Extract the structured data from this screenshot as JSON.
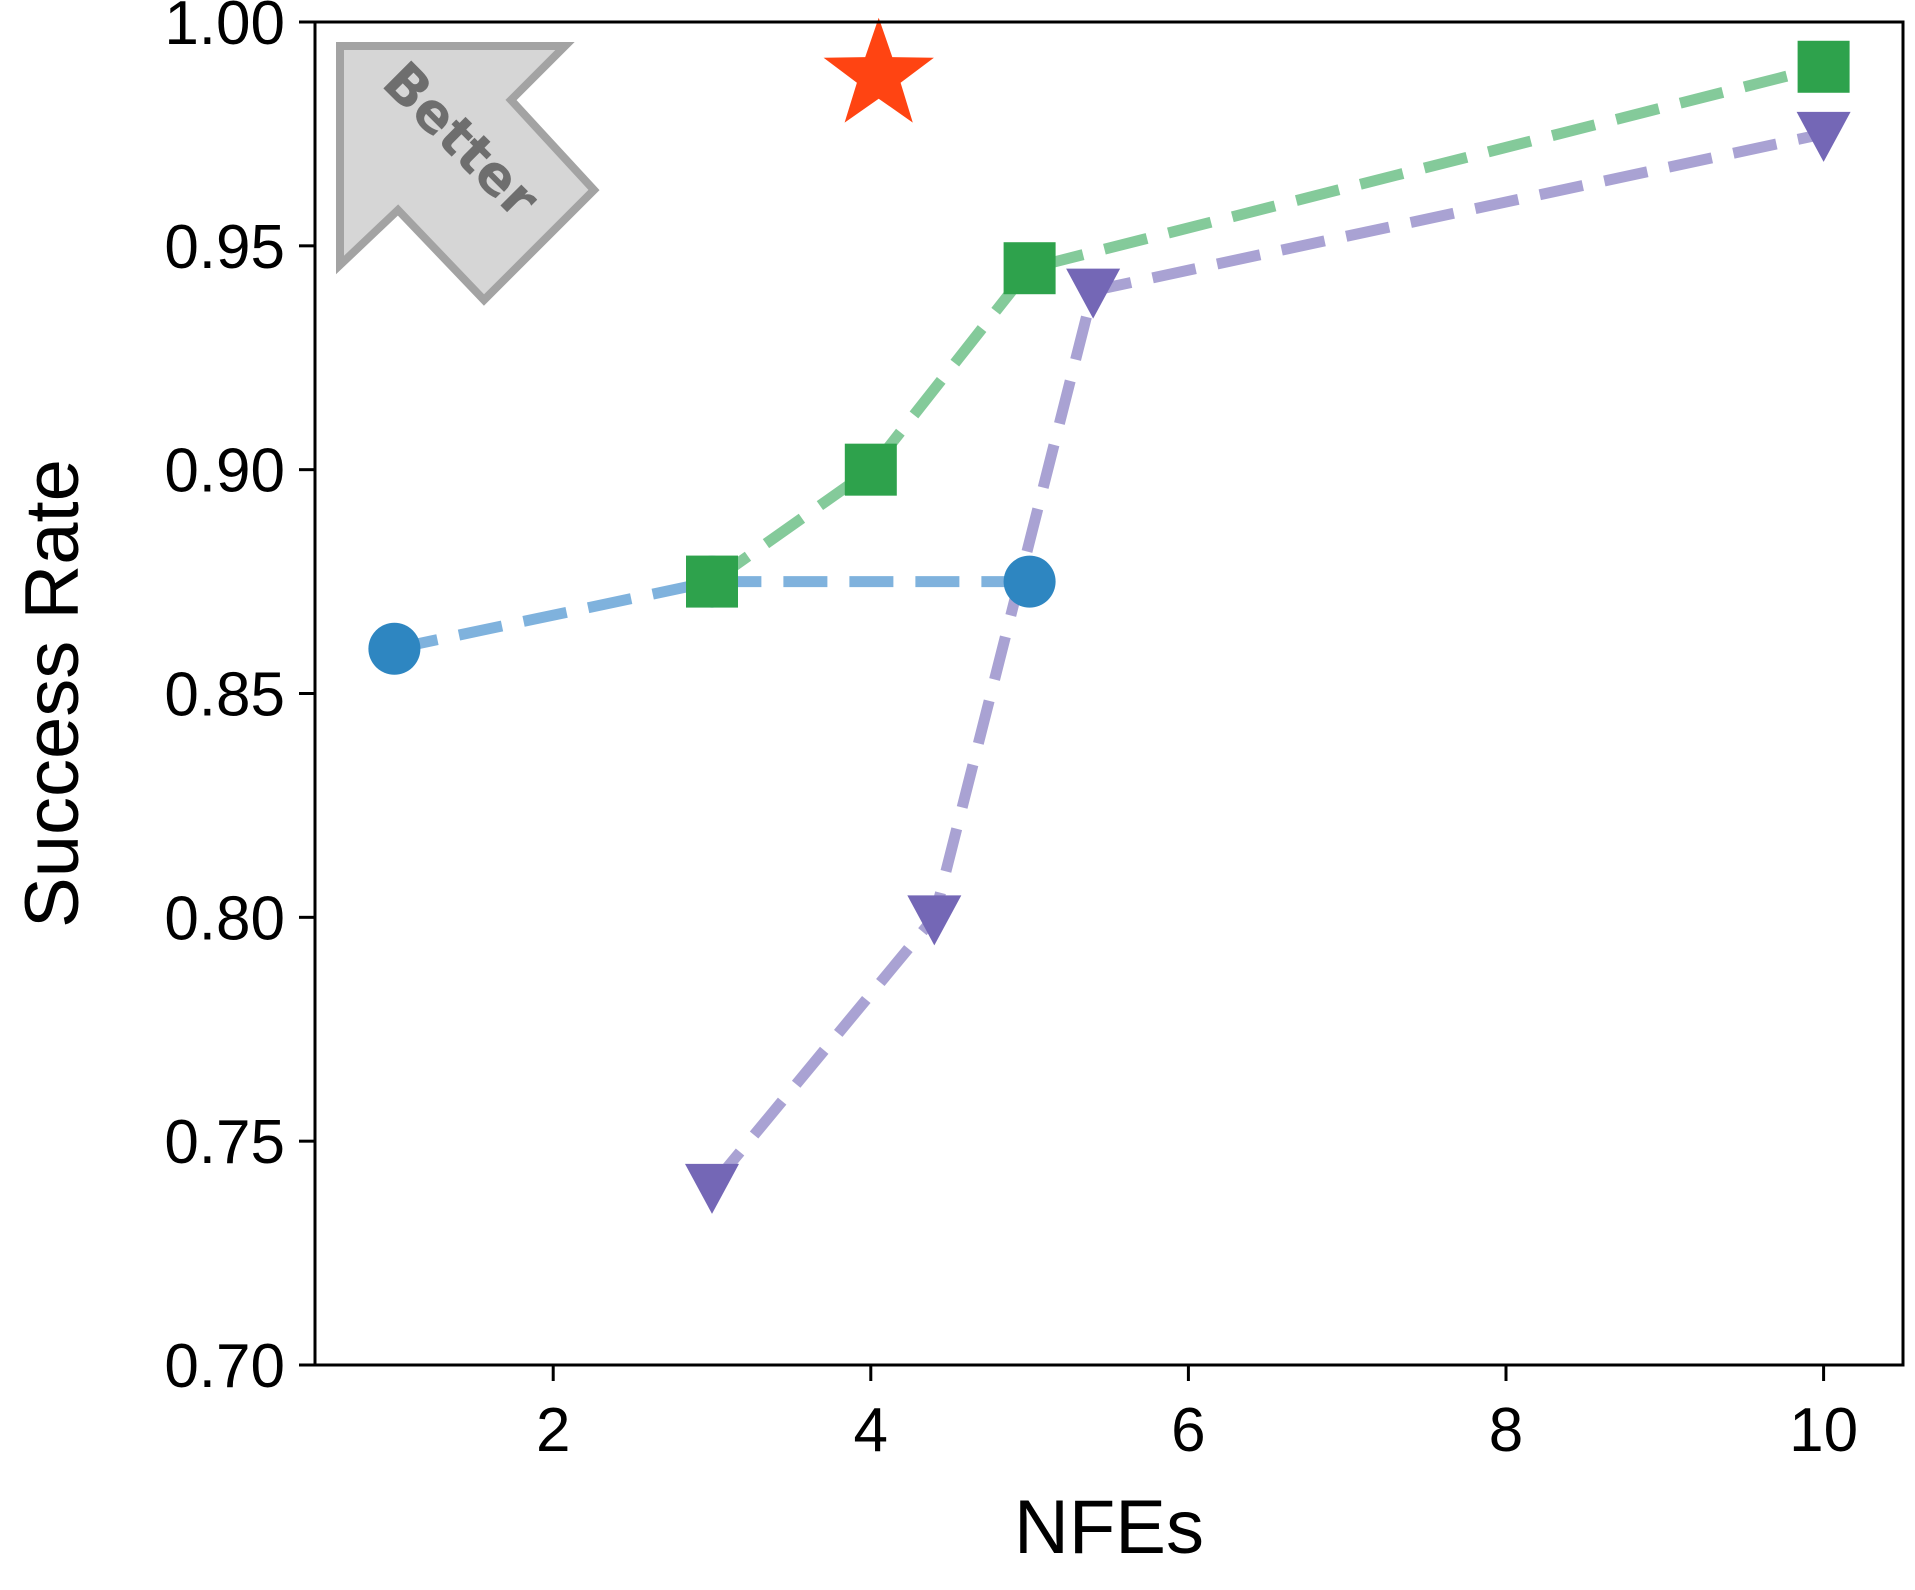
{
  "chart_data": {
    "type": "line",
    "xlabel": "NFEs",
    "ylabel": "Success Rate",
    "xlim": [
      0.5,
      10.5
    ],
    "ylim": [
      0.7,
      1.0
    ],
    "xticks": [
      2,
      4,
      6,
      8,
      10
    ],
    "yticks": [
      0.7,
      0.75,
      0.8,
      0.85,
      0.9,
      0.95,
      1.0
    ],
    "xtick_labels": [
      "2",
      "4",
      "6",
      "8",
      "10"
    ],
    "ytick_labels": [
      "0.70",
      "0.75",
      "0.80",
      "0.85",
      "0.90",
      "0.95",
      "1.00"
    ],
    "grid": false,
    "annotation": {
      "text": "Better",
      "direction": "top-left"
    },
    "series": [
      {
        "marker": "circle",
        "color": "#2E86C1",
        "line_color": "#7FB2DD",
        "line_style": "dashed",
        "points": [
          [
            1,
            0.86
          ],
          [
            3,
            0.875
          ],
          [
            5,
            0.875
          ]
        ]
      },
      {
        "marker": "square",
        "color": "#2EA24C",
        "line_color": "#84CA9A",
        "line_style": "dashed",
        "points": [
          [
            3,
            0.875
          ],
          [
            4,
            0.9
          ],
          [
            5,
            0.945
          ],
          [
            10,
            0.99
          ]
        ]
      },
      {
        "marker": "triangle-down",
        "color": "#7467B6",
        "line_color": "#A9A2D3",
        "line_style": "dashed",
        "points": [
          [
            3,
            0.74
          ],
          [
            4.4,
            0.8
          ],
          [
            5.4,
            0.94
          ],
          [
            10,
            0.975
          ]
        ]
      },
      {
        "marker": "star",
        "color": "#FF4412",
        "line_style": "none",
        "points": [
          [
            4.05,
            0.988
          ]
        ]
      }
    ]
  }
}
